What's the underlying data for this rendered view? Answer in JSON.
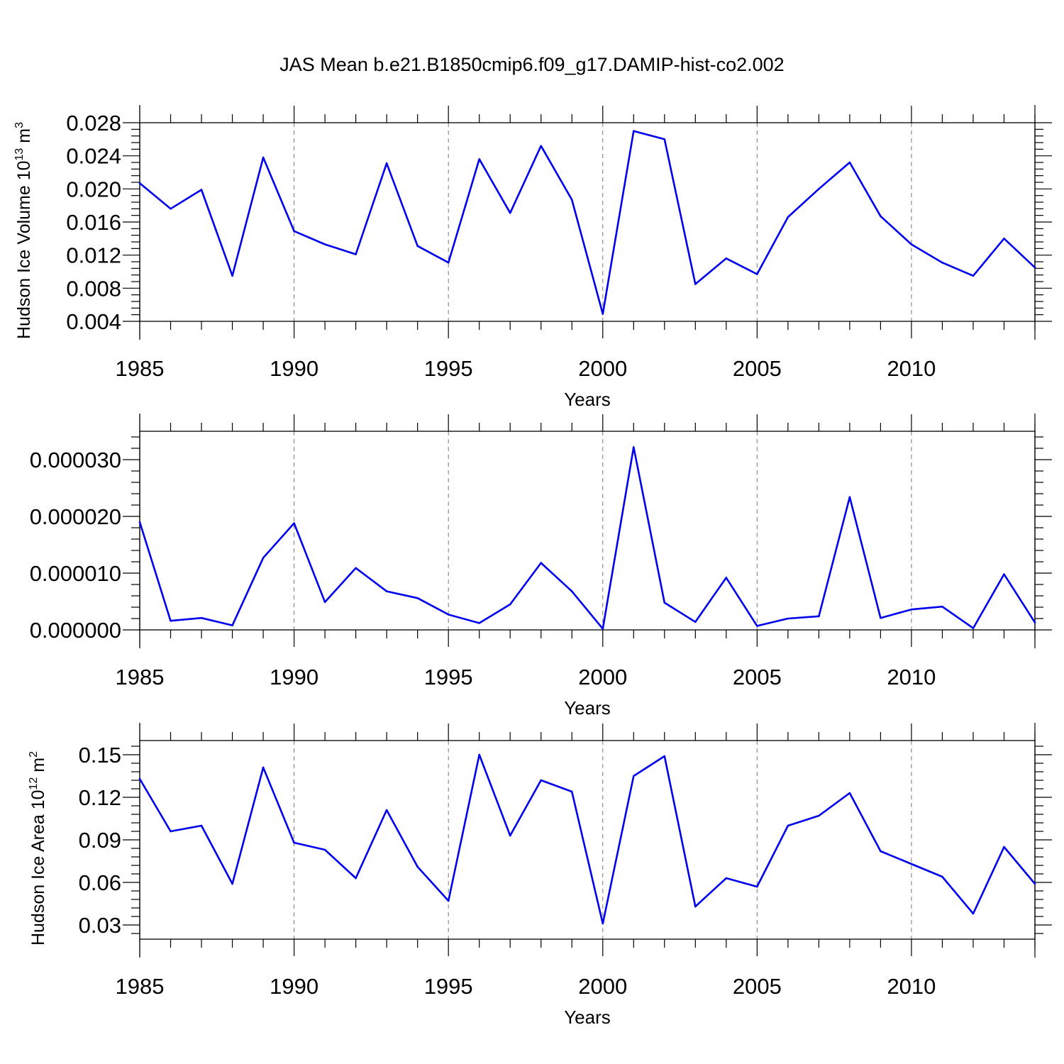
{
  "title": "JAS Mean b.e21.B1850cmip6.f09_g17.DAMIP-hist-co2.002",
  "colors": {
    "series": "#0000ee",
    "axes": "#000000",
    "grid": "#777777"
  },
  "chart_data": [
    {
      "type": "line",
      "title": "JAS Mean b.e21.B1850cmip6.f09_g17.DAMIP-hist-co2.002",
      "xlabel": "Years",
      "ylabel": "Hudson Ice Volume 10",
      "ylabel_exp": "13",
      "ylabel_unit": " m",
      "ylabel_unit_exp": "3",
      "xlim": [
        1985,
        2014
      ],
      "ylim": [
        0.004,
        0.028
      ],
      "x_ticks": [
        1985,
        1990,
        1995,
        2000,
        2005,
        2010
      ],
      "x_tick_labels": [
        "1985",
        "1990",
        "1995",
        "2000",
        "2005",
        "2010"
      ],
      "y_ticks": [
        0.004,
        0.008,
        0.012,
        0.016,
        0.02,
        0.024,
        0.028
      ],
      "y_tick_labels": [
        "0.004",
        "0.008",
        "0.012",
        "0.016",
        "0.020",
        "0.024",
        "0.028"
      ],
      "grid": "vertical dashed at major x ticks",
      "x": [
        1985,
        1986,
        1987,
        1988,
        1989,
        1990,
        1991,
        1992,
        1993,
        1994,
        1995,
        1996,
        1997,
        1998,
        1999,
        2000,
        2001,
        2002,
        2003,
        2004,
        2005,
        2006,
        2007,
        2008,
        2009,
        2010,
        2011,
        2012,
        2013,
        2014
      ],
      "values": [
        0.0207,
        0.0176,
        0.0199,
        0.0095,
        0.0238,
        0.0149,
        0.0133,
        0.0121,
        0.0231,
        0.0131,
        0.0111,
        0.0236,
        0.0171,
        0.0252,
        0.0187,
        0.0049,
        0.027,
        0.026,
        0.0085,
        0.0116,
        0.0097,
        0.0166,
        0.02,
        0.0232,
        0.0167,
        0.0133,
        0.0111,
        0.0095,
        0.014,
        0.0105
      ]
    },
    {
      "type": "line",
      "title": "",
      "xlabel": "Years",
      "ylabel": "",
      "xlim": [
        1985,
        2014
      ],
      "ylim": [
        0.0,
        3.5e-05
      ],
      "x_ticks": [
        1985,
        1990,
        1995,
        2000,
        2005,
        2010
      ],
      "x_tick_labels": [
        "1985",
        "1990",
        "1995",
        "2000",
        "2005",
        "2010"
      ],
      "y_ticks": [
        0.0,
        1e-05,
        2e-05,
        3e-05
      ],
      "y_tick_labels": [
        "0.000000",
        "0.000010",
        "0.000020",
        "0.000030"
      ],
      "grid": "vertical dashed at major x ticks",
      "x": [
        1985,
        1986,
        1987,
        1988,
        1989,
        1990,
        1991,
        1992,
        1993,
        1994,
        1995,
        1996,
        1997,
        1998,
        1999,
        2000,
        2001,
        2002,
        2003,
        2004,
        2005,
        2006,
        2007,
        2008,
        2009,
        2010,
        2011,
        2012,
        2013,
        2014
      ],
      "values": [
        1.9e-05,
        1.6e-06,
        2.1e-06,
        8e-07,
        1.27e-05,
        1.88e-05,
        4.9e-06,
        1.09e-05,
        6.8e-06,
        5.6e-06,
        2.7e-06,
        1.2e-06,
        4.5e-06,
        1.18e-05,
        6.8e-06,
        2e-07,
        3.22e-05,
        4.8e-06,
        1.4e-06,
        9.2e-06,
        7e-07,
        2e-06,
        2.4e-06,
        2.34e-05,
        2.1e-06,
        3.6e-06,
        4.1e-06,
        3e-07,
        9.8e-06,
        1.3e-06
      ]
    },
    {
      "type": "line",
      "title": "",
      "xlabel": "Years",
      "ylabel": "Hudson Ice Area 10",
      "ylabel_exp": "12",
      "ylabel_unit": " m",
      "ylabel_unit_exp": "2",
      "xlim": [
        1985,
        2014
      ],
      "ylim": [
        0.02,
        0.16
      ],
      "x_ticks": [
        1985,
        1990,
        1995,
        2000,
        2005,
        2010
      ],
      "x_tick_labels": [
        "1985",
        "1990",
        "1995",
        "2000",
        "2005",
        "2010"
      ],
      "y_ticks": [
        0.03,
        0.06,
        0.09,
        0.12,
        0.15
      ],
      "y_tick_labels": [
        "0.03",
        "0.06",
        "0.09",
        "0.12",
        "0.15"
      ],
      "grid": "vertical dashed at major x ticks",
      "x": [
        1985,
        1986,
        1987,
        1988,
        1989,
        1990,
        1991,
        1992,
        1993,
        1994,
        1995,
        1996,
        1997,
        1998,
        1999,
        2000,
        2001,
        2002,
        2003,
        2004,
        2005,
        2006,
        2007,
        2008,
        2009,
        2010,
        2011,
        2012,
        2013,
        2014
      ],
      "values": [
        0.133,
        0.096,
        0.1,
        0.059,
        0.141,
        0.088,
        0.083,
        0.063,
        0.111,
        0.071,
        0.047,
        0.15,
        0.093,
        0.132,
        0.124,
        0.031,
        0.135,
        0.149,
        0.043,
        0.063,
        0.057,
        0.1,
        0.107,
        0.123,
        0.082,
        0.073,
        0.064,
        0.038,
        0.085,
        0.059
      ]
    }
  ]
}
